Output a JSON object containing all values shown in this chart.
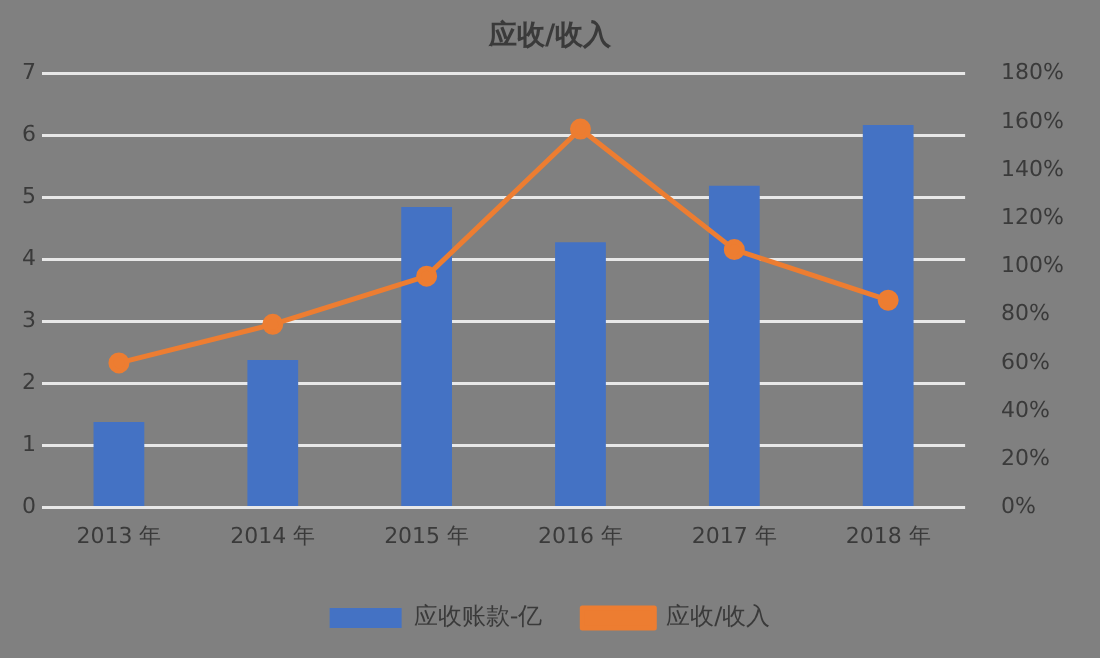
{
  "chart_data": {
    "type": "bar",
    "title": "应收/收入",
    "categories": [
      "2013 年",
      "2014 年",
      "2015 年",
      "2016 年",
      "2017 年",
      "2018 年"
    ],
    "series": [
      {
        "name": "应收账款-亿",
        "color": "#4472c4",
        "values": [
          1.38,
          2.38,
          4.85,
          4.28,
          5.19,
          6.17
        ]
      },
      {
        "name": "应收/收入",
        "type": "line",
        "axis": "y2",
        "color": "#ed7d31",
        "values": [
          60,
          76,
          96,
          157,
          107,
          86
        ]
      }
    ],
    "ylim": [
      0,
      7
    ],
    "yticks": [
      0,
      1,
      2,
      3,
      4,
      5,
      6,
      7
    ],
    "y2lim": [
      0,
      180
    ],
    "y2ticks": [
      {
        "value": 0,
        "label": "0%"
      },
      {
        "value": 20,
        "label": "20%"
      },
      {
        "value": 40,
        "label": "40%"
      },
      {
        "value": 60,
        "label": "60%"
      },
      {
        "value": 80,
        "label": "80%"
      },
      {
        "value": 100,
        "label": "100%"
      },
      {
        "value": 120,
        "label": "120%"
      },
      {
        "value": 140,
        "label": "140%"
      },
      {
        "value": 160,
        "label": "160%"
      },
      {
        "value": 180,
        "label": "180%"
      }
    ],
    "grid": "y",
    "legend": "bottom",
    "marker": "circle"
  }
}
